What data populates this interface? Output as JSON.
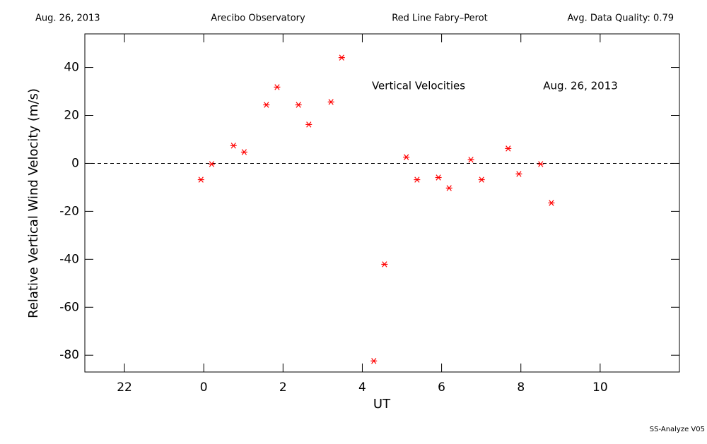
{
  "chart_data": {
    "type": "scatter",
    "header": [
      "Aug. 26, 2013",
      "Arecibo Observatory",
      "Red Line Fabry–Perot",
      "Avg. Data Quality: 0.79"
    ],
    "annotations": [
      "Vertical Velocities",
      "Aug. 26, 2013"
    ],
    "footer": "SS-Analyze V05",
    "xlabel": "UT",
    "ylabel": "Relative Vertical Wind Velocity (m/s)",
    "xlim": [
      -3,
      12
    ],
    "ylim": [
      -87,
      54
    ],
    "xticks": [
      {
        "value": -2,
        "label": "22"
      },
      0,
      2,
      4,
      6,
      8,
      10
    ],
    "yticks": [
      -80,
      -60,
      -40,
      -20,
      0,
      20,
      40
    ],
    "hline": 0,
    "color": "#ff0000",
    "x": [
      -0.07,
      0.2,
      0.75,
      1.02,
      1.58,
      1.85,
      2.39,
      2.65,
      3.21,
      3.48,
      4.29,
      4.56,
      5.11,
      5.38,
      5.92,
      6.19,
      6.74,
      7.01,
      7.68,
      7.95,
      8.5,
      8.77
    ],
    "values": [
      -6.8,
      -0.3,
      7.4,
      4.7,
      24.4,
      31.8,
      24.4,
      16.2,
      25.6,
      44.1,
      -82.4,
      -42.1,
      2.6,
      -6.8,
      -5.9,
      -10.3,
      1.5,
      -6.8,
      6.2,
      -4.4,
      -0.3,
      -16.5
    ]
  }
}
